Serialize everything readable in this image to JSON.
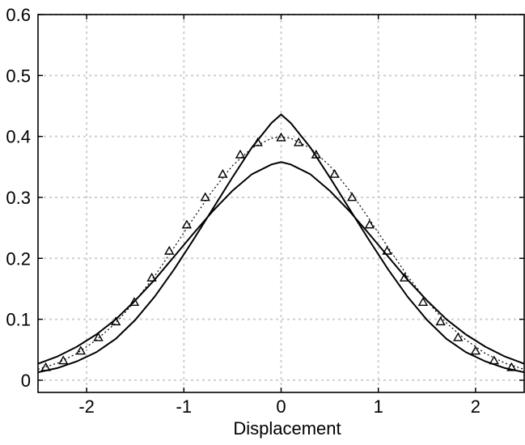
{
  "chart_data": {
    "type": "line",
    "xlabel": "Displacement",
    "ylabel": "",
    "xlim": [
      -2.5,
      2.5
    ],
    "ylim": [
      -0.02,
      0.6
    ],
    "grid": true,
    "x_ticks": [
      -2,
      -1,
      0,
      1,
      2
    ],
    "x_tick_labels": [
      "-2",
      "-1",
      "0",
      "1",
      "2"
    ],
    "y_ticks": [
      0,
      0.1,
      0.2,
      0.3,
      0.4,
      0.5,
      0.6
    ],
    "y_tick_labels": [
      "0",
      "0.1",
      "0.2",
      "0.3",
      "0.4",
      "0.5",
      "0.6"
    ],
    "series": [
      {
        "style": "solid",
        "color": "#000000",
        "x": [
          -2.5,
          -2.3,
          -2.1,
          -1.9,
          -1.7,
          -1.5,
          -1.3,
          -1.1,
          -0.9,
          -0.7,
          -0.5,
          -0.3,
          -0.1,
          0,
          0.1,
          0.3,
          0.5,
          0.7,
          0.9,
          1.1,
          1.3,
          1.5,
          1.7,
          1.9,
          2.1,
          2.3,
          2.5
        ],
        "values": [
          0.013,
          0.02,
          0.031,
          0.046,
          0.068,
          0.099,
          0.137,
          0.182,
          0.231,
          0.282,
          0.333,
          0.382,
          0.422,
          0.436,
          0.422,
          0.382,
          0.333,
          0.282,
          0.231,
          0.182,
          0.137,
          0.099,
          0.068,
          0.046,
          0.031,
          0.02,
          0.013
        ]
      },
      {
        "style": "dotted",
        "color": "#000000",
        "x": [
          -2.5,
          -2.3,
          -2.1,
          -1.9,
          -1.7,
          -1.5,
          -1.3,
          -1.1,
          -0.9,
          -0.7,
          -0.5,
          -0.3,
          -0.1,
          0,
          0.1,
          0.3,
          0.5,
          0.7,
          0.9,
          1.1,
          1.3,
          1.5,
          1.7,
          1.9,
          2.1,
          2.3,
          2.5
        ],
        "values": [
          0.018,
          0.028,
          0.044,
          0.066,
          0.094,
          0.13,
          0.171,
          0.218,
          0.266,
          0.312,
          0.352,
          0.381,
          0.397,
          0.399,
          0.397,
          0.381,
          0.352,
          0.312,
          0.266,
          0.218,
          0.171,
          0.13,
          0.094,
          0.066,
          0.044,
          0.028,
          0.018
        ]
      },
      {
        "style": "solid",
        "color": "#000000",
        "x": [
          -2.5,
          -2.3,
          -2.1,
          -1.9,
          -1.7,
          -1.5,
          -1.3,
          -1.1,
          -0.9,
          -0.7,
          -0.5,
          -0.3,
          -0.1,
          0,
          0.1,
          0.3,
          0.5,
          0.7,
          0.9,
          1.1,
          1.3,
          1.5,
          1.7,
          1.9,
          2.1,
          2.3,
          2.5
        ],
        "values": [
          0.027,
          0.039,
          0.055,
          0.075,
          0.1,
          0.131,
          0.165,
          0.203,
          0.241,
          0.278,
          0.311,
          0.338,
          0.354,
          0.358,
          0.354,
          0.338,
          0.311,
          0.278,
          0.241,
          0.203,
          0.165,
          0.131,
          0.1,
          0.075,
          0.055,
          0.039,
          0.027
        ]
      },
      {
        "style": "markers",
        "marker": "triangle",
        "color": "#000000",
        "x": [
          -2.42,
          -2.24,
          -2.06,
          -1.88,
          -1.7,
          -1.51,
          -1.33,
          -1.15,
          -0.97,
          -0.78,
          -0.6,
          -0.42,
          -0.24,
          0,
          0.18,
          0.36,
          0.55,
          0.73,
          0.91,
          1.09,
          1.27,
          1.46,
          1.64,
          1.82,
          2.0,
          2.19,
          2.37
        ],
        "values": [
          0.021,
          0.032,
          0.048,
          0.07,
          0.096,
          0.128,
          0.168,
          0.212,
          0.255,
          0.3,
          0.338,
          0.37,
          0.39,
          0.398,
          0.39,
          0.37,
          0.338,
          0.3,
          0.255,
          0.212,
          0.168,
          0.128,
          0.096,
          0.07,
          0.048,
          0.032,
          0.021
        ]
      }
    ]
  }
}
